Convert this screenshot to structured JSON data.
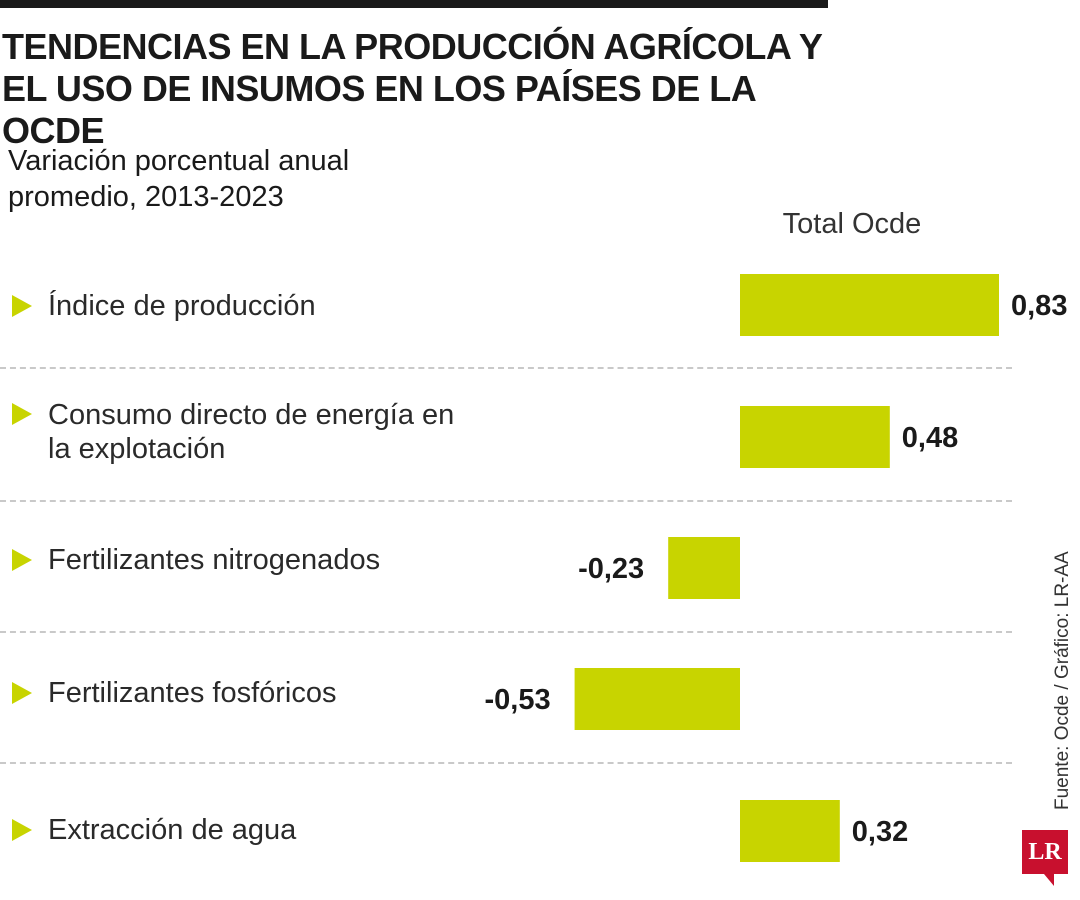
{
  "header": {
    "title": "TENDENCIAS EN LA PRODUCCIÓN AGRÍCOLA Y EL USO DE INSUMOS EN LOS PAÍSES DE LA OCDE",
    "subtitle": "Variación porcentual anual promedio, 2013-2023"
  },
  "chart_data": {
    "type": "bar",
    "orientation": "horizontal",
    "title": "TENDENCIAS EN LA PRODUCCIÓN AGRÍCOLA Y EL USO DE INSUMOS EN LOS PAÍSES DE LA OCDE",
    "subtitle": "Variación porcentual anual promedio, 2013-2023",
    "categories": [
      "Índice de producción",
      "Consumo directo de energía en la explotación",
      "Fertilizantes nitrogenados",
      "Fertilizantes fosfóricos",
      "Extracción de agua"
    ],
    "series": [
      {
        "name": "Total Ocde",
        "values": [
          0.83,
          0.48,
          -0.23,
          -0.53,
          0.32
        ],
        "labels": [
          "0,83",
          "0,48",
          "-0,23",
          "-0,53",
          "0,32"
        ]
      }
    ],
    "bar_color": "#c8d400",
    "grid": false,
    "legend": "top-right"
  },
  "source": "Fuente: Ocde / Gráfico: LR-AA",
  "logo": {
    "text": "LR",
    "color": "#c8102e"
  }
}
